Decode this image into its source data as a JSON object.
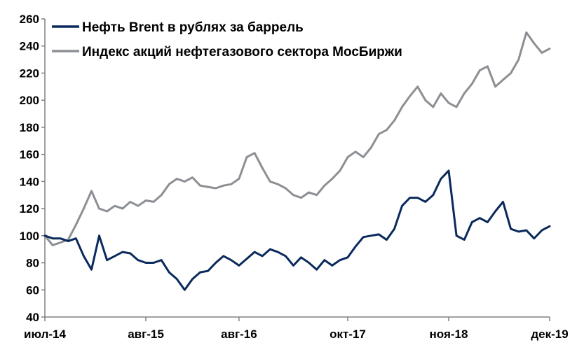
{
  "chart_data": {
    "type": "line",
    "title": "",
    "xlabel": "",
    "ylabel": "",
    "ylim": [
      40,
      260
    ],
    "yticks": [
      40,
      60,
      80,
      100,
      120,
      140,
      160,
      180,
      200,
      220,
      240,
      260
    ],
    "xlim": [
      "2014-07",
      "2019-12"
    ],
    "xticks": [
      "июл-14",
      "авг-15",
      "авг-16",
      "окт-17",
      "ноя-18",
      "дек-19"
    ],
    "xtick_dates": [
      "2014-07",
      "2015-08",
      "2016-08",
      "2017-10",
      "2018-11",
      "2019-12"
    ],
    "grid": false,
    "legend": "top-left",
    "series": [
      {
        "name": "Нефть Brent в рублях за баррель",
        "color": "#0a2a5c",
        "x": [
          "2014-07",
          "2014-08",
          "2014-09",
          "2014-10",
          "2014-11",
          "2014-12",
          "2015-01",
          "2015-02",
          "2015-03",
          "2015-04",
          "2015-05",
          "2015-06",
          "2015-07",
          "2015-08",
          "2015-09",
          "2015-10",
          "2015-11",
          "2015-12",
          "2016-01",
          "2016-02",
          "2016-03",
          "2016-04",
          "2016-05",
          "2016-06",
          "2016-07",
          "2016-08",
          "2016-09",
          "2016-10",
          "2016-11",
          "2016-12",
          "2017-01",
          "2017-02",
          "2017-03",
          "2017-04",
          "2017-05",
          "2017-06",
          "2017-07",
          "2017-08",
          "2017-09",
          "2017-10",
          "2017-11",
          "2017-12",
          "2018-01",
          "2018-02",
          "2018-03",
          "2018-04",
          "2018-05",
          "2018-06",
          "2018-07",
          "2018-08",
          "2018-09",
          "2018-10",
          "2018-11",
          "2018-12",
          "2019-01",
          "2019-02",
          "2019-03",
          "2019-04",
          "2019-05",
          "2019-06",
          "2019-07",
          "2019-08",
          "2019-09",
          "2019-10",
          "2019-11",
          "2019-12"
        ],
        "values": [
          100,
          98,
          98,
          96,
          98,
          85,
          75,
          100,
          82,
          85,
          88,
          87,
          82,
          80,
          80,
          82,
          73,
          68,
          60,
          68,
          73,
          74,
          80,
          85,
          82,
          78,
          83,
          88,
          85,
          90,
          88,
          85,
          78,
          84,
          80,
          75,
          82,
          78,
          82,
          84,
          92,
          99,
          100,
          101,
          97,
          105,
          122,
          128,
          128,
          125,
          130,
          142,
          148,
          100,
          97,
          110,
          113,
          110,
          118,
          125,
          105,
          103,
          104,
          98,
          104,
          107
        ]
      },
      {
        "name": "Индекс акций нефтегазового сектора МосБиржи",
        "color": "#8c8f94",
        "x": [
          "2014-07",
          "2014-08",
          "2014-09",
          "2014-10",
          "2014-11",
          "2014-12",
          "2015-01",
          "2015-02",
          "2015-03",
          "2015-04",
          "2015-05",
          "2015-06",
          "2015-07",
          "2015-08",
          "2015-09",
          "2015-10",
          "2015-11",
          "2015-12",
          "2016-01",
          "2016-02",
          "2016-03",
          "2016-04",
          "2016-05",
          "2016-06",
          "2016-07",
          "2016-08",
          "2016-09",
          "2016-10",
          "2016-11",
          "2016-12",
          "2017-01",
          "2017-02",
          "2017-03",
          "2017-04",
          "2017-05",
          "2017-06",
          "2017-07",
          "2017-08",
          "2017-09",
          "2017-10",
          "2017-11",
          "2017-12",
          "2018-01",
          "2018-02",
          "2018-03",
          "2018-04",
          "2018-05",
          "2018-06",
          "2018-07",
          "2018-08",
          "2018-09",
          "2018-10",
          "2018-11",
          "2018-12",
          "2019-01",
          "2019-02",
          "2019-03",
          "2019-04",
          "2019-05",
          "2019-06",
          "2019-07",
          "2019-08",
          "2019-09",
          "2019-10",
          "2019-11",
          "2019-12"
        ],
        "values": [
          100,
          93,
          95,
          97,
          108,
          120,
          133,
          120,
          118,
          122,
          120,
          125,
          122,
          126,
          125,
          130,
          138,
          142,
          140,
          143,
          137,
          136,
          135,
          137,
          138,
          142,
          158,
          161,
          150,
          140,
          138,
          135,
          130,
          128,
          132,
          130,
          137,
          142,
          148,
          158,
          162,
          158,
          165,
          175,
          178,
          185,
          195,
          203,
          210,
          200,
          195,
          205,
          198,
          195,
          205,
          212,
          222,
          225,
          210,
          215,
          220,
          230,
          250,
          242,
          235,
          238
        ]
      }
    ]
  }
}
